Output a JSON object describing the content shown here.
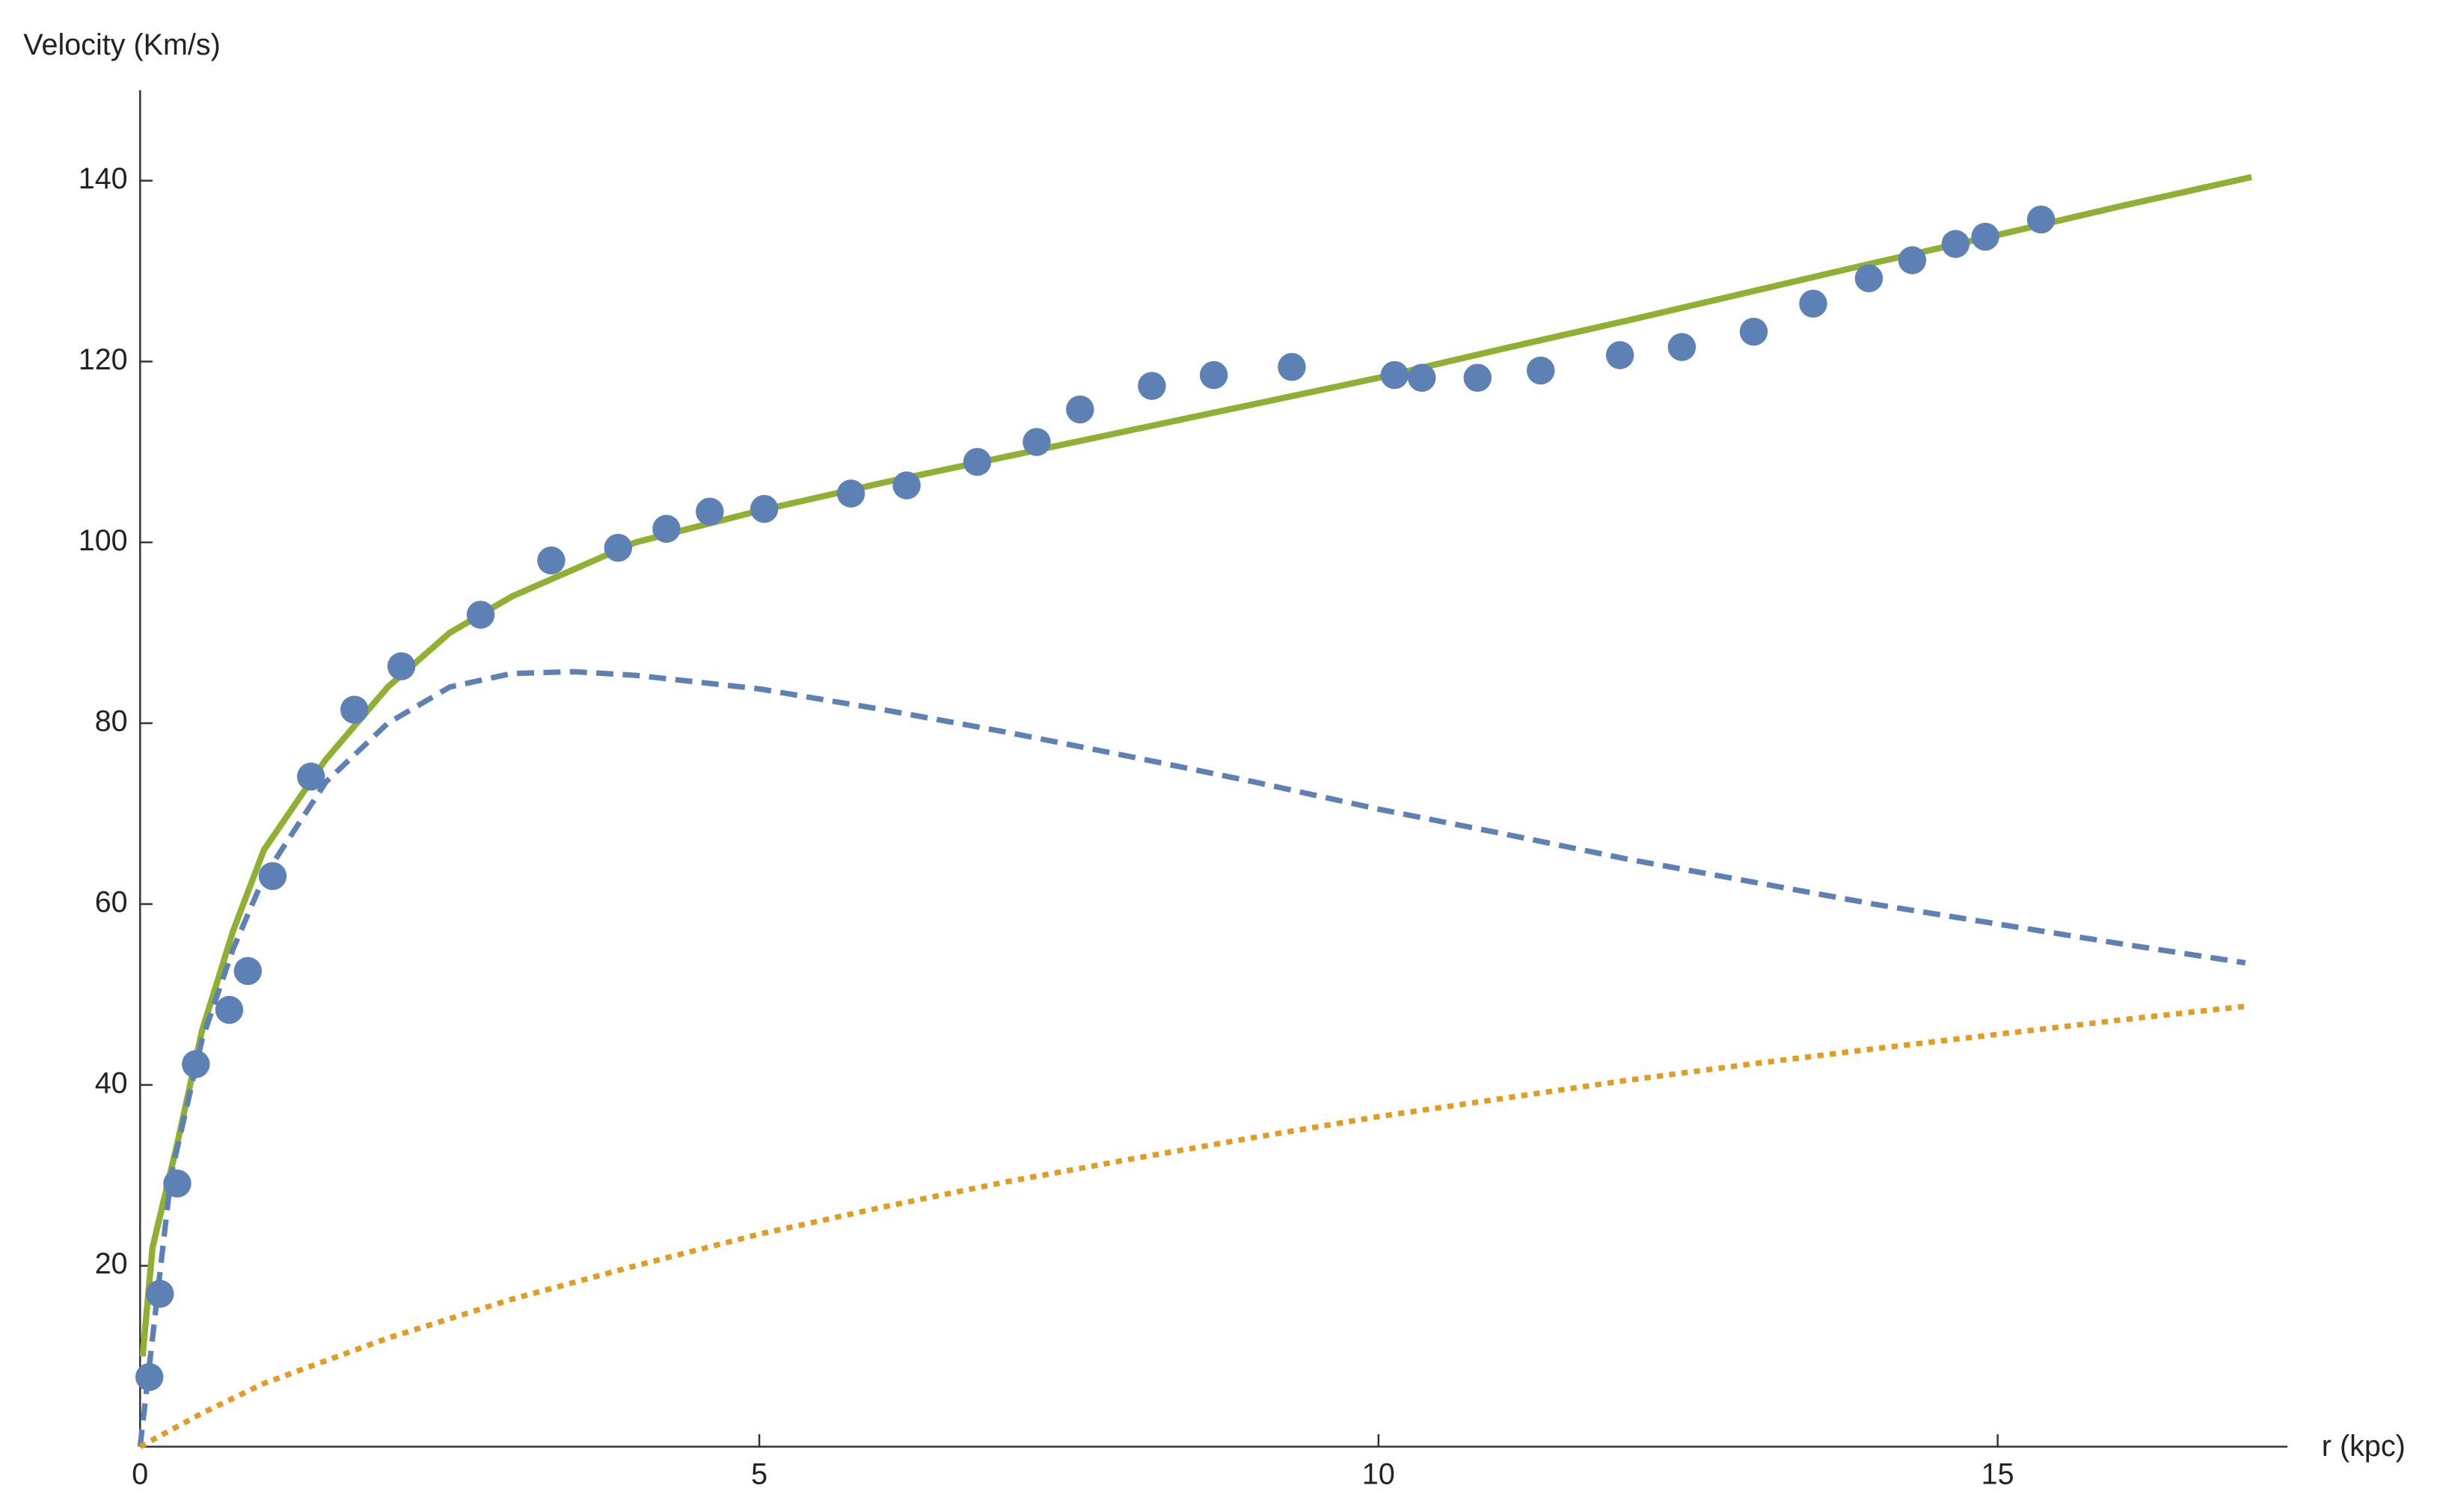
{
  "chart_data": {
    "type": "scatter",
    "y_label": "Velocity (Km/s)",
    "x_label": "r (kpc)",
    "xlim": [
      0,
      17.34
    ],
    "ylim": [
      0,
      150
    ],
    "xticks": [
      0,
      5,
      10,
      15
    ],
    "yticks": [
      20,
      40,
      60,
      80,
      100,
      120,
      140
    ],
    "grid": false,
    "series": [
      {
        "type": "scatter",
        "color": "#5e81b5",
        "x": [
          0.075,
          0.16,
          0.3,
          0.45,
          0.72,
          0.87,
          1.07,
          1.38,
          1.73,
          2.11,
          2.75,
          3.32,
          3.86,
          4.25,
          4.6,
          5.04,
          5.74,
          6.19,
          6.76,
          7.24,
          7.59,
          8.17,
          8.67,
          9.3,
          10.13,
          10.35,
          10.8,
          11.31,
          11.95,
          12.45,
          13.03,
          13.51,
          13.96,
          14.31,
          14.66,
          14.9,
          15.35
        ],
        "values": [
          7.7,
          16.9,
          29.1,
          42.3,
          48.3,
          52.6,
          63.1,
          74.1,
          81.5,
          86.3,
          92.0,
          98.0,
          99.4,
          101.5,
          103.4,
          103.7,
          105.4,
          106.3,
          108.9,
          111.1,
          114.7,
          117.3,
          118.5,
          119.4,
          118.5,
          118.2,
          118.2,
          119.0,
          120.7,
          121.6,
          123.3,
          126.4,
          129.2,
          131.2,
          133.0,
          133.8,
          135.7
        ]
      },
      {
        "type": "line",
        "style": "solid",
        "color": "#8fb032",
        "x": [
          0.02,
          0.1,
          0.3,
          0.5,
          0.75,
          1,
          1.5,
          2,
          2.5,
          3,
          4,
          5,
          6,
          7,
          8,
          9,
          10,
          11,
          12,
          13,
          14,
          15,
          16,
          17.05
        ],
        "values": [
          10,
          22,
          33.5,
          46,
          57,
          66,
          76,
          84,
          90,
          94,
          100,
          103.5,
          106.6,
          109.5,
          112.4,
          115.3,
          118.2,
          121.4,
          124.5,
          127.7,
          130.9,
          134.0,
          137.2,
          140.4
        ]
      },
      {
        "type": "line",
        "style": "dashed",
        "color": "#5e81b5",
        "x": [
          0,
          0.25,
          0.5,
          0.75,
          1,
          1.5,
          2,
          2.5,
          3,
          3.5,
          4,
          5,
          6,
          7,
          8,
          9,
          10,
          11,
          12,
          13,
          14,
          15,
          16,
          17
        ],
        "values": [
          0,
          30,
          45,
          55,
          63,
          73.5,
          80,
          84,
          85.5,
          85.7,
          85.3,
          83.8,
          81.5,
          79,
          76.3,
          73.5,
          70.5,
          67.8,
          65,
          62.5,
          60,
          57.8,
          55.6,
          53.5
        ]
      },
      {
        "type": "line",
        "style": "dotted",
        "color": "#e19c24",
        "x": [
          0,
          0.5,
          1,
          2,
          3,
          4,
          5,
          6,
          7,
          8,
          9,
          10,
          11,
          12,
          13,
          14,
          15,
          16,
          17
        ],
        "values": [
          0,
          3.7,
          7,
          12,
          16.3,
          20,
          23.5,
          26.5,
          29.3,
          31.8,
          34.2,
          36.5,
          38.5,
          40.5,
          42.3,
          44,
          45.6,
          47.2,
          48.7
        ]
      }
    ]
  }
}
